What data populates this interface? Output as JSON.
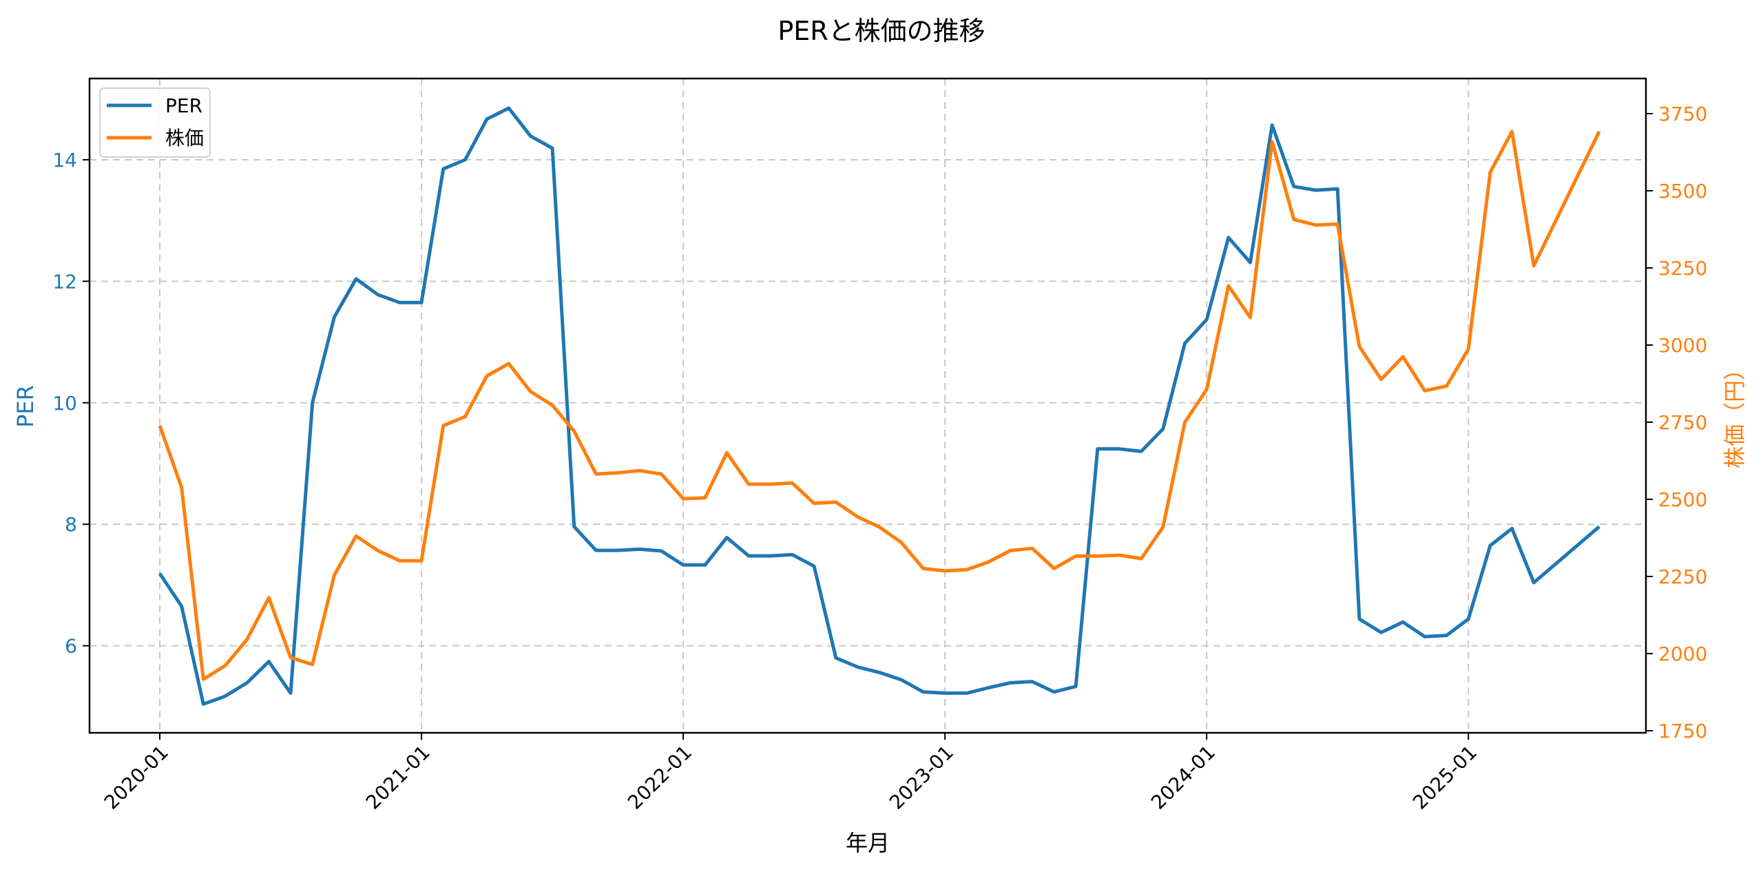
{
  "title": "PERと株価の推移",
  "colors": {
    "per": "#1f77b4",
    "price": "#ff7f0e",
    "grid": "#c8c8c8",
    "axis": "#000000"
  },
  "legend": {
    "items": [
      {
        "label": "PER",
        "color": "#1f77b4"
      },
      {
        "label": "株価",
        "color": "#ff7f0e"
      }
    ]
  },
  "axes": {
    "x_label": "年月",
    "left_label": "PER",
    "right_label": "株価（円）",
    "x_ticks": [
      "2020-01",
      "2021-01",
      "2022-01",
      "2023-01",
      "2024-01",
      "2025-01"
    ],
    "left_ticks": [
      "6",
      "8",
      "10",
      "12",
      "14"
    ],
    "right_ticks": [
      "1750",
      "2000",
      "2250",
      "2500",
      "2750",
      "3000",
      "3250",
      "3500",
      "3750"
    ]
  },
  "chart_data": {
    "type": "line",
    "title": "PERと株価の推移",
    "xlabel": "年月",
    "ylabel": "PER",
    "y2label": "株価（円）",
    "ylim": [
      4.5,
      15.4
    ],
    "y2lim": [
      1730,
      3860
    ],
    "grid": true,
    "legend_position": "upper left",
    "x": [
      "2020-01",
      "2020-02",
      "2020-03",
      "2020-04",
      "2020-05",
      "2020-06",
      "2020-07",
      "2020-08",
      "2020-09",
      "2020-10",
      "2020-11",
      "2020-12",
      "2021-01",
      "2021-02",
      "2021-03",
      "2021-04",
      "2021-05",
      "2021-06",
      "2021-07",
      "2021-08",
      "2021-09",
      "2021-10",
      "2021-11",
      "2021-12",
      "2022-01",
      "2022-02",
      "2022-03",
      "2022-04",
      "2022-05",
      "2022-06",
      "2022-07",
      "2022-08",
      "2022-09",
      "2022-10",
      "2022-11",
      "2022-12",
      "2023-01",
      "2023-02",
      "2023-03",
      "2023-04",
      "2023-05",
      "2023-06",
      "2023-07",
      "2023-08",
      "2023-09",
      "2023-10",
      "2023-11",
      "2023-12",
      "2024-01",
      "2024-02",
      "2024-03",
      "2024-04",
      "2024-05",
      "2024-06",
      "2024-07",
      "2024-08",
      "2024-09",
      "2024-10",
      "2024-11",
      "2024-12",
      "2025-01",
      "2025-02",
      "2025-03",
      "2025-04",
      "2025-07"
    ],
    "series": [
      {
        "name": "PER",
        "axis": "left",
        "color": "#1f77b4",
        "values": [
          7.19,
          6.65,
          5.04,
          5.17,
          5.39,
          5.74,
          5.22,
          10.0,
          11.41,
          12.04,
          11.78,
          11.65,
          11.65,
          13.85,
          14.0,
          14.67,
          14.85,
          14.39,
          14.19,
          7.96,
          7.57,
          7.57,
          7.59,
          7.56,
          7.33,
          7.33,
          7.78,
          7.48,
          7.48,
          7.5,
          7.31,
          5.8,
          5.65,
          5.56,
          5.44,
          5.24,
          5.22,
          5.22,
          5.31,
          5.39,
          5.41,
          5.24,
          5.33,
          9.24,
          9.24,
          9.2,
          9.57,
          10.98,
          11.37,
          12.72,
          12.31,
          14.57,
          13.56,
          13.5,
          13.52,
          6.44,
          6.22,
          6.39,
          6.15,
          6.17,
          6.44,
          7.65,
          7.93,
          7.04,
          7.96
        ]
      },
      {
        "name": "株価",
        "axis": "right",
        "color": "#ff7f0e",
        "values": [
          2739,
          2538,
          1917,
          1961,
          2046,
          2181,
          1987,
          1965,
          2254,
          2381,
          2334,
          2301,
          2301,
          2739,
          2768,
          2900,
          2940,
          2849,
          2805,
          2721,
          2582,
          2586,
          2593,
          2582,
          2502,
          2505,
          2651,
          2549,
          2549,
          2553,
          2487,
          2491,
          2443,
          2410,
          2360,
          2276,
          2268,
          2272,
          2297,
          2334,
          2341,
          2276,
          2316,
          2316,
          2319,
          2308,
          2410,
          2750,
          2856,
          3192,
          3089,
          3659,
          3407,
          3389,
          3392,
          2995,
          2889,
          2962,
          2852,
          2867,
          2987,
          3560,
          3692,
          3257,
          3692
        ]
      }
    ]
  }
}
